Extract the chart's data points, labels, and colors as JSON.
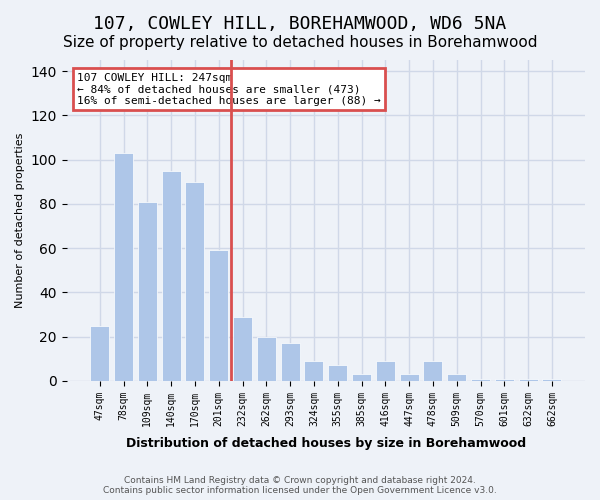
{
  "title1": "107, COWLEY HILL, BOREHAMWOOD, WD6 5NA",
  "title2": "Size of property relative to detached houses in Borehamwood",
  "xlabel": "Distribution of detached houses by size in Borehamwood",
  "ylabel": "Number of detached properties",
  "categories": [
    "47sqm",
    "78sqm",
    "109sqm",
    "140sqm",
    "170sqm",
    "201sqm",
    "232sqm",
    "262sqm",
    "293sqm",
    "324sqm",
    "355sqm",
    "385sqm",
    "416sqm",
    "447sqm",
    "478sqm",
    "509sqm",
    "570sqm",
    "601sqm",
    "632sqm",
    "662sqm"
  ],
  "values": [
    25,
    103,
    81,
    95,
    90,
    59,
    29,
    20,
    17,
    9,
    7,
    3,
    9,
    3,
    9,
    3,
    1,
    1,
    1,
    1
  ],
  "bar_colors_left": "#aec6e8",
  "bar_color_highlight": "#d94f4f",
  "bar_colors_right": "#aec6e8",
  "highlight_index": 6,
  "annotation_text": "107 COWLEY HILL: 247sqm\n← 84% of detached houses are smaller (473)\n16% of semi-detached houses are larger (88) →",
  "annotation_box_color": "#d94f4f",
  "annotation_text_color": "#000000",
  "annotation_box_bg": "#ffffff",
  "grid_color": "#d0d8e8",
  "bg_color": "#eef2f8",
  "plot_bg": "#eef2f8",
  "footer": "Contains HM Land Registry data © Crown copyright and database right 2024.\nContains public sector information licensed under the Open Government Licence v3.0.",
  "ylim": [
    0,
    145
  ],
  "yticks": [
    0,
    20,
    40,
    60,
    80,
    100,
    120,
    140
  ],
  "vline_x": 6,
  "title1_fontsize": 13,
  "title2_fontsize": 11
}
